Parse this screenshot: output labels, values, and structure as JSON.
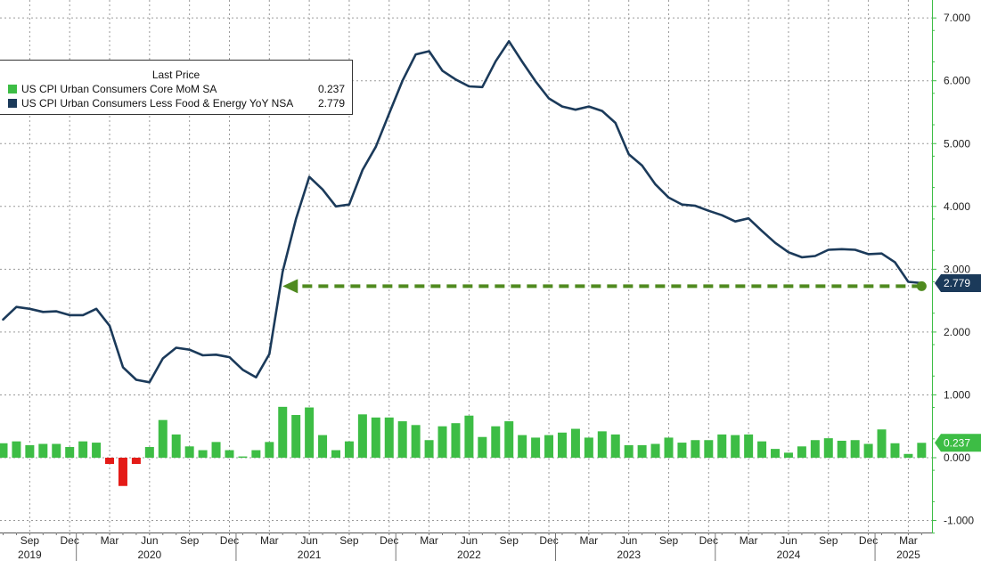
{
  "chart_data": {
    "type": "bar+line",
    "title": "",
    "legend": {
      "title": "Last Price",
      "placement": "top-left",
      "entries": [
        {
          "name": "US CPI Urban Consumers Core MoM SA",
          "value": "0.237",
          "color": "#3dbd45"
        },
        {
          "name": "US CPI Urban Consumers Less Food & Energy YoY NSA",
          "value": "2.779",
          "color": "#1b3a5a"
        }
      ]
    },
    "x_axis": {
      "start": "2019-07",
      "end": "2025-04",
      "month_labels": [
        {
          "date": "2019-09",
          "label": "Sep"
        },
        {
          "date": "2019-12",
          "label": "Dec"
        },
        {
          "date": "2020-03",
          "label": "Mar"
        },
        {
          "date": "2020-06",
          "label": "Jun"
        },
        {
          "date": "2020-09",
          "label": "Sep"
        },
        {
          "date": "2020-12",
          "label": "Dec"
        },
        {
          "date": "2021-03",
          "label": "Mar"
        },
        {
          "date": "2021-06",
          "label": "Jun"
        },
        {
          "date": "2021-09",
          "label": "Sep"
        },
        {
          "date": "2021-12",
          "label": "Dec"
        },
        {
          "date": "2022-03",
          "label": "Mar"
        },
        {
          "date": "2022-06",
          "label": "Jun"
        },
        {
          "date": "2022-09",
          "label": "Sep"
        },
        {
          "date": "2022-12",
          "label": "Dec"
        },
        {
          "date": "2023-03",
          "label": "Mar"
        },
        {
          "date": "2023-06",
          "label": "Jun"
        },
        {
          "date": "2023-09",
          "label": "Sep"
        },
        {
          "date": "2023-12",
          "label": "Dec"
        },
        {
          "date": "2024-03",
          "label": "Mar"
        },
        {
          "date": "2024-06",
          "label": "Jun"
        },
        {
          "date": "2024-09",
          "label": "Sep"
        },
        {
          "date": "2024-12",
          "label": "Dec"
        },
        {
          "date": "2025-03",
          "label": "Mar"
        }
      ],
      "year_labels": [
        {
          "date": "2019-09",
          "label": "2019"
        },
        {
          "date": "2020-06",
          "label": "2020"
        },
        {
          "date": "2021-06",
          "label": "2021"
        },
        {
          "date": "2022-06",
          "label": "2022"
        },
        {
          "date": "2023-06",
          "label": "2023"
        },
        {
          "date": "2024-06",
          "label": "2024"
        },
        {
          "date": "2025-03",
          "label": "2025"
        }
      ]
    },
    "y_axis": {
      "range": [
        -1.2,
        7.2
      ],
      "ticks": [
        {
          "value": -1,
          "label": "-1.000"
        },
        {
          "value": 0,
          "label": "0.000"
        },
        {
          "value": 1,
          "label": "1.000"
        },
        {
          "value": 2,
          "label": "2.000"
        },
        {
          "value": 3,
          "label": "3.000"
        },
        {
          "value": 4,
          "label": "4.000"
        },
        {
          "value": 5,
          "label": "5.000"
        },
        {
          "value": 6,
          "label": "6.000"
        },
        {
          "value": 7,
          "label": "7.000"
        }
      ],
      "position": "right",
      "grid": true
    },
    "series": [
      {
        "name": "US CPI Urban Consumers Core MoM SA",
        "kind": "bar",
        "positive_color": "#3dbd45",
        "negative_color": "#e41b17",
        "points": [
          [
            "2019-07",
            0.23
          ],
          [
            "2019-08",
            0.26
          ],
          [
            "2019-09",
            0.2
          ],
          [
            "2019-10",
            0.22
          ],
          [
            "2019-11",
            0.22
          ],
          [
            "2019-12",
            0.17
          ],
          [
            "2020-01",
            0.26
          ],
          [
            "2020-02",
            0.24
          ],
          [
            "2020-03",
            -0.1
          ],
          [
            "2020-04",
            -0.45
          ],
          [
            "2020-05",
            -0.1
          ],
          [
            "2020-06",
            0.17
          ],
          [
            "2020-07",
            0.6
          ],
          [
            "2020-08",
            0.37
          ],
          [
            "2020-09",
            0.18
          ],
          [
            "2020-10",
            0.12
          ],
          [
            "2020-11",
            0.25
          ],
          [
            "2020-12",
            0.12
          ],
          [
            "2021-01",
            0.02
          ],
          [
            "2021-02",
            0.12
          ],
          [
            "2021-03",
            0.25
          ],
          [
            "2021-04",
            0.81
          ],
          [
            "2021-05",
            0.68
          ],
          [
            "2021-06",
            0.8
          ],
          [
            "2021-07",
            0.36
          ],
          [
            "2021-08",
            0.12
          ],
          [
            "2021-09",
            0.26
          ],
          [
            "2021-10",
            0.69
          ],
          [
            "2021-11",
            0.64
          ],
          [
            "2021-12",
            0.64
          ],
          [
            "2022-01",
            0.58
          ],
          [
            "2022-02",
            0.52
          ],
          [
            "2022-03",
            0.28
          ],
          [
            "2022-04",
            0.5
          ],
          [
            "2022-05",
            0.55
          ],
          [
            "2022-06",
            0.67
          ],
          [
            "2022-07",
            0.33
          ],
          [
            "2022-08",
            0.5
          ],
          [
            "2022-09",
            0.58
          ],
          [
            "2022-10",
            0.36
          ],
          [
            "2022-11",
            0.32
          ],
          [
            "2022-12",
            0.36
          ],
          [
            "2023-01",
            0.4
          ],
          [
            "2023-02",
            0.46
          ],
          [
            "2023-03",
            0.32
          ],
          [
            "2023-04",
            0.42
          ],
          [
            "2023-05",
            0.37
          ],
          [
            "2023-06",
            0.2
          ],
          [
            "2023-07",
            0.2
          ],
          [
            "2023-08",
            0.22
          ],
          [
            "2023-09",
            0.32
          ],
          [
            "2023-10",
            0.24
          ],
          [
            "2023-11",
            0.28
          ],
          [
            "2023-12",
            0.28
          ],
          [
            "2024-01",
            0.37
          ],
          [
            "2024-02",
            0.36
          ],
          [
            "2024-03",
            0.37
          ],
          [
            "2024-04",
            0.26
          ],
          [
            "2024-05",
            0.14
          ],
          [
            "2024-06",
            0.08
          ],
          [
            "2024-07",
            0.18
          ],
          [
            "2024-08",
            0.28
          ],
          [
            "2024-09",
            0.31
          ],
          [
            "2024-10",
            0.27
          ],
          [
            "2024-11",
            0.28
          ],
          [
            "2024-12",
            0.22
          ],
          [
            "2025-01",
            0.45
          ],
          [
            "2025-02",
            0.23
          ],
          [
            "2025-03",
            0.06
          ],
          [
            "2025-04",
            0.237
          ]
        ]
      },
      {
        "name": "US CPI Urban Consumers Less Food & Energy YoY NSA",
        "kind": "line",
        "color": "#1b3a5a",
        "points": [
          [
            "2019-07",
            2.2
          ],
          [
            "2019-08",
            2.4
          ],
          [
            "2019-09",
            2.37
          ],
          [
            "2019-10",
            2.32
          ],
          [
            "2019-11",
            2.33
          ],
          [
            "2019-12",
            2.27
          ],
          [
            "2020-01",
            2.27
          ],
          [
            "2020-02",
            2.37
          ],
          [
            "2020-03",
            2.1
          ],
          [
            "2020-04",
            1.44
          ],
          [
            "2020-05",
            1.24
          ],
          [
            "2020-06",
            1.2
          ],
          [
            "2020-07",
            1.58
          ],
          [
            "2020-08",
            1.75
          ],
          [
            "2020-09",
            1.72
          ],
          [
            "2020-10",
            1.63
          ],
          [
            "2020-11",
            1.64
          ],
          [
            "2020-12",
            1.6
          ],
          [
            "2021-01",
            1.4
          ],
          [
            "2021-02",
            1.28
          ],
          [
            "2021-03",
            1.65
          ],
          [
            "2021-04",
            2.96
          ],
          [
            "2021-05",
            3.8
          ],
          [
            "2021-06",
            4.47
          ],
          [
            "2021-07",
            4.27
          ],
          [
            "2021-08",
            4.0
          ],
          [
            "2021-09",
            4.03
          ],
          [
            "2021-10",
            4.58
          ],
          [
            "2021-11",
            4.95
          ],
          [
            "2021-12",
            5.48
          ],
          [
            "2022-01",
            6.0
          ],
          [
            "2022-02",
            6.42
          ],
          [
            "2022-03",
            6.47
          ],
          [
            "2022-04",
            6.16
          ],
          [
            "2022-05",
            6.02
          ],
          [
            "2022-06",
            5.91
          ],
          [
            "2022-07",
            5.9
          ],
          [
            "2022-08",
            6.31
          ],
          [
            "2022-09",
            6.63
          ],
          [
            "2022-10",
            6.3
          ],
          [
            "2022-11",
            5.99
          ],
          [
            "2022-12",
            5.72
          ],
          [
            "2023-01",
            5.59
          ],
          [
            "2023-02",
            5.54
          ],
          [
            "2023-03",
            5.59
          ],
          [
            "2023-04",
            5.52
          ],
          [
            "2023-05",
            5.33
          ],
          [
            "2023-06",
            4.83
          ],
          [
            "2023-07",
            4.65
          ],
          [
            "2023-08",
            4.35
          ],
          [
            "2023-09",
            4.14
          ],
          [
            "2023-10",
            4.03
          ],
          [
            "2023-11",
            4.01
          ],
          [
            "2023-12",
            3.93
          ],
          [
            "2024-01",
            3.86
          ],
          [
            "2024-02",
            3.76
          ],
          [
            "2024-03",
            3.81
          ],
          [
            "2024-04",
            3.61
          ],
          [
            "2024-05",
            3.42
          ],
          [
            "2024-06",
            3.27
          ],
          [
            "2024-07",
            3.19
          ],
          [
            "2024-08",
            3.21
          ],
          [
            "2024-09",
            3.31
          ],
          [
            "2024-10",
            3.32
          ],
          [
            "2024-11",
            3.31
          ],
          [
            "2024-12",
            3.24
          ],
          [
            "2025-01",
            3.25
          ],
          [
            "2025-02",
            3.11
          ],
          [
            "2025-03",
            2.8
          ],
          [
            "2025-04",
            2.779
          ]
        ]
      }
    ],
    "value_tags": [
      {
        "series": "US CPI Urban Consumers Less Food & Energy YoY NSA",
        "value": 2.779,
        "label": "2.779",
        "color": "#1b3a5a"
      },
      {
        "series": "US CPI Urban Consumers Core MoM SA",
        "value": 0.237,
        "label": "0.237",
        "color": "#3dbd45"
      }
    ],
    "annotations": [
      {
        "type": "dashed-arrow",
        "from": [
          "2025-04",
          2.73
        ],
        "to": [
          "2021-04",
          2.73
        ],
        "color": "#4f8a1f"
      }
    ]
  }
}
